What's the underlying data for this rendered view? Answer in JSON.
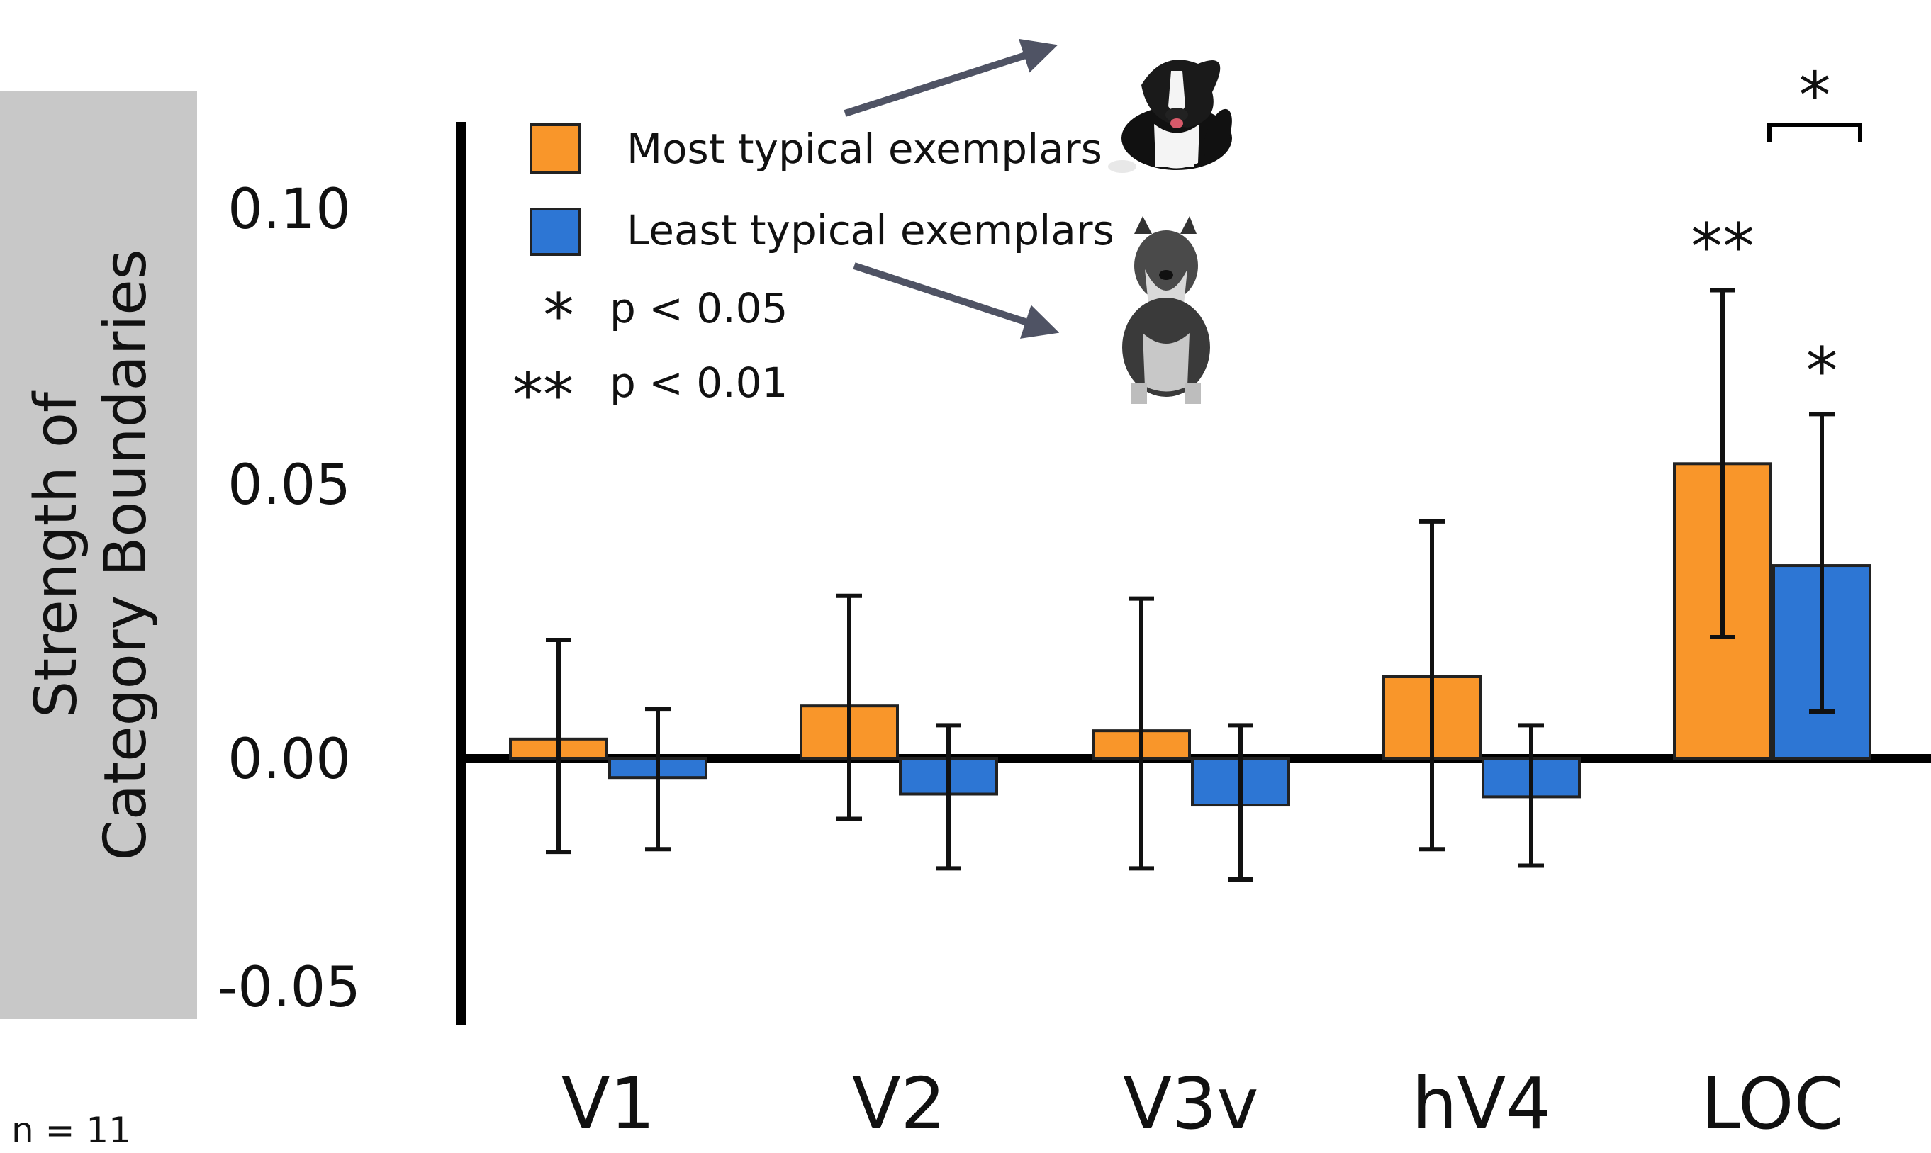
{
  "chart_data": {
    "type": "bar",
    "title": "",
    "xlabel": "",
    "ylabel_lines": [
      "Strength of",
      "Category Boundaries"
    ],
    "ylim": [
      -0.05,
      0.1
    ],
    "yticks": [
      "0.10",
      "0.05",
      "0.00",
      "-0.05"
    ],
    "ytick_values": [
      0.1,
      0.05,
      0.0,
      -0.05
    ],
    "categories": [
      "V1",
      "V2",
      "V3v",
      "hV4",
      "LOC"
    ],
    "series": [
      {
        "name": "Most typical exemplars",
        "color": "#f9962a",
        "values": [
          0.0035,
          0.0095,
          0.005,
          0.0148,
          0.0535
        ],
        "error_low": [
          -0.017,
          -0.011,
          -0.02,
          -0.0165,
          0.022
        ],
        "error_high": [
          0.0215,
          0.0295,
          0.029,
          0.043,
          0.085
        ]
      },
      {
        "name": "Least typical exemplars",
        "color": "#2d76d4",
        "values": [
          -0.0035,
          -0.0065,
          -0.0085,
          -0.007,
          0.035
        ],
        "error_low": [
          -0.0165,
          -0.02,
          -0.022,
          -0.0195,
          0.0085
        ],
        "error_high": [
          0.009,
          0.006,
          0.006,
          0.006,
          0.0625
        ]
      }
    ],
    "significance": {
      "legend": [
        {
          "symbol": "*",
          "text": "p < 0.05"
        },
        {
          "symbol": "**",
          "text": "p < 0.01"
        }
      ],
      "marks": [
        {
          "category": "LOC",
          "series": 0,
          "symbol": "**"
        },
        {
          "category": "LOC",
          "series": 1,
          "symbol": "*"
        },
        {
          "category": "LOC",
          "bracket": true,
          "symbol": "*"
        }
      ]
    },
    "legend_position": "top-left",
    "grid": false
  },
  "footnote": "n = 11",
  "legend_images": [
    "border-collie-dog",
    "schnauzer-dog"
  ],
  "colors": {
    "orange": "#f9962a",
    "blue": "#2d76d4",
    "axis": "#000000",
    "ylabel_bg": "#c8c8c8",
    "arrow": "#4f5364"
  }
}
